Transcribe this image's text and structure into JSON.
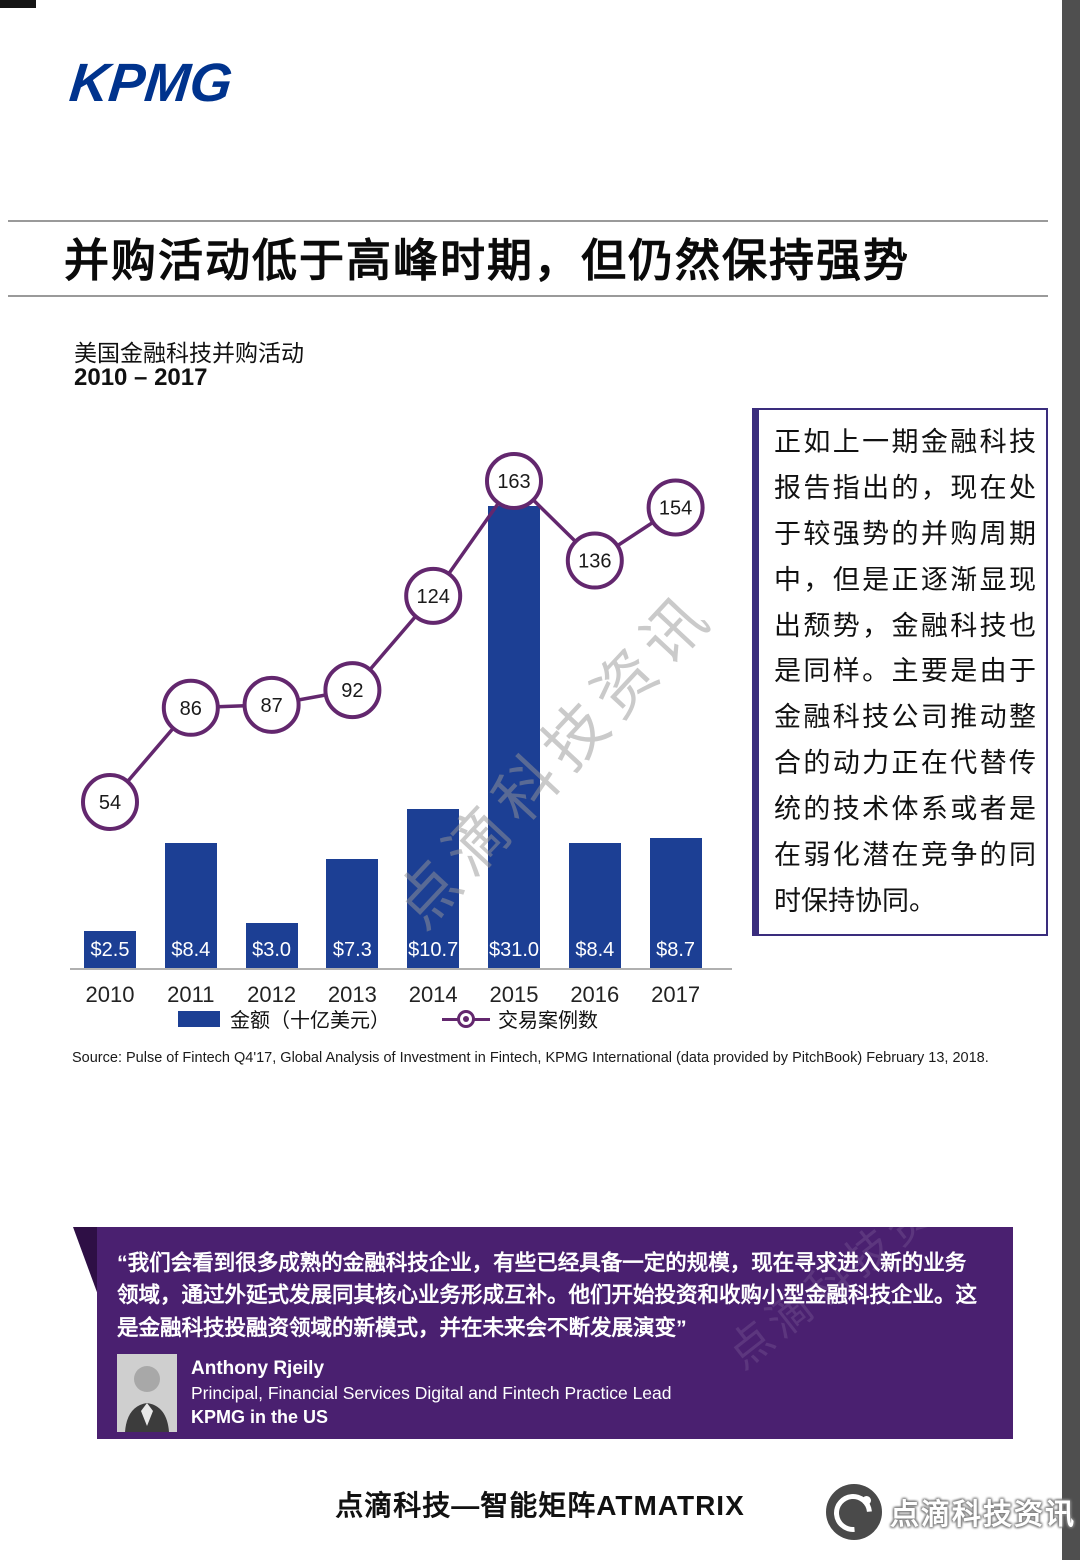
{
  "page": {
    "brand_logo": "KPMG",
    "title": "并购活动低于高峰时期，但仍然保持强势",
    "footer_center": "点滴科技—智能矩阵ATMATRIX",
    "watermark": "点滴科技资讯",
    "corner_brand": "点滴科技资讯"
  },
  "chart": {
    "subtitle": "美国金融科技并购活动",
    "period": "2010 – 2017",
    "legend": {
      "bar_label": "金额（十亿美元）",
      "line_label": "交易案例数"
    },
    "source": "Source: Pulse of Fintech Q4'17, Global Analysis of Investment in Fintech, KPMG International (data provided by PitchBook) February 13, 2018."
  },
  "chart_data": {
    "type": "bar",
    "title": "美国金融科技并购活动 2010 – 2017",
    "categories": [
      "2010",
      "2011",
      "2012",
      "2013",
      "2014",
      "2015",
      "2016",
      "2017"
    ],
    "series": [
      {
        "name": "金额（十亿美元）",
        "type": "bar",
        "values": [
          2.5,
          8.4,
          3.0,
          7.3,
          10.7,
          31.0,
          8.4,
          8.7
        ],
        "labels": [
          "$2.5",
          "$8.4",
          "$3.0",
          "$7.3",
          "$10.7",
          "$31.0",
          "$8.4",
          "$8.7"
        ],
        "color": "#1c3f94"
      },
      {
        "name": "交易案例数",
        "type": "line",
        "values": [
          54,
          86,
          87,
          92,
          124,
          163,
          136,
          154
        ],
        "color": "#63276e"
      }
    ],
    "legend_position": "bottom",
    "grid": false,
    "xlabel": "",
    "ylabel": ""
  },
  "note": {
    "text": "正如上一期金融科技报告指出的，现在处于较强势的并购周期中，但是正逐渐显现出颓势，金融科技也是同样。主要是由于金融科技公司推动整合的动力正在代替传统的技术体系或者是在弱化潜在竞争的同时保持协同。"
  },
  "quote": {
    "text": "“我们会看到很多成熟的金融科技企业，有些已经具备一定的规模，现在寻求进入新的业务领域，通过外延式发展同其核心业务形成互补。他们开始投资和收购小型金融科技企业。这是金融科技投融资领域的新模式，并在未来会不断发展演变”",
    "name": "Anthony Rjeily",
    "title": "Principal, Financial Services Digital and Fintech Practice Lead",
    "org": "KPMG in the US"
  },
  "colors": {
    "bar": "#1c3f94",
    "line": "#63276e",
    "quote_bg": "#4a2070",
    "rule": "#3a2d7d",
    "kpmg_blue": "#00338D"
  }
}
